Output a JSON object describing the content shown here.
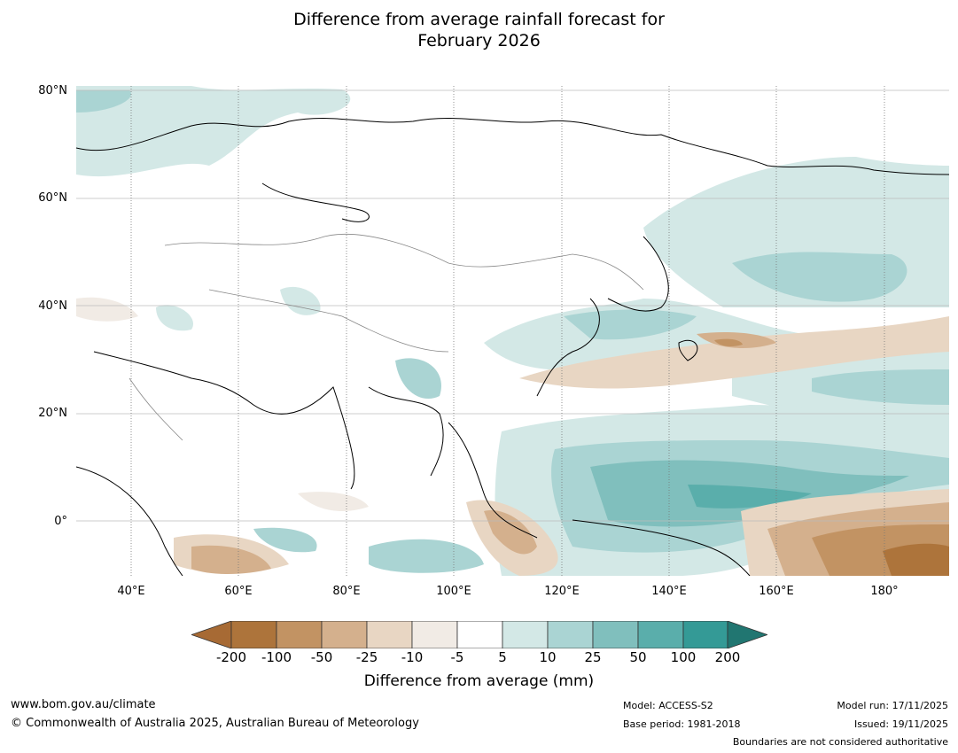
{
  "title_line1": "Difference from average rainfall forecast for",
  "title_line2": "February 2026",
  "map": {
    "lat_labels": [
      "80°N",
      "60°N",
      "40°N",
      "20°N",
      "0°"
    ],
    "lon_labels": [
      "40°E",
      "60°E",
      "80°E",
      "100°E",
      "120°E",
      "140°E",
      "160°E",
      "180°"
    ]
  },
  "colorbar": {
    "ticks": [
      "-200",
      "-100",
      "-50",
      "-25",
      "-10",
      "-5",
      "5",
      "10",
      "25",
      "50",
      "100",
      "200"
    ],
    "colors": [
      "#a76a34",
      "#ad743b",
      "#c29363",
      "#d4b08d",
      "#e8d6c3",
      "#f1ebe5",
      "#ffffff",
      "#d3e8e6",
      "#aad4d3",
      "#80bfbd",
      "#5aaeab",
      "#349a96",
      "#217671"
    ],
    "label": "Difference from average (mm)"
  },
  "footer": {
    "website": "www.bom.gov.au/climate",
    "copyright": "© Commonwealth of Australia 2025, Australian Bureau of Meteorology",
    "model": "Model: ACCESS-S2",
    "base_period": "Base period: 1981-2018",
    "model_run": "Model run: 17/11/2025",
    "issued": "Issued: 19/11/2025",
    "disclaimer": "Boundaries are not considered authoritative"
  }
}
